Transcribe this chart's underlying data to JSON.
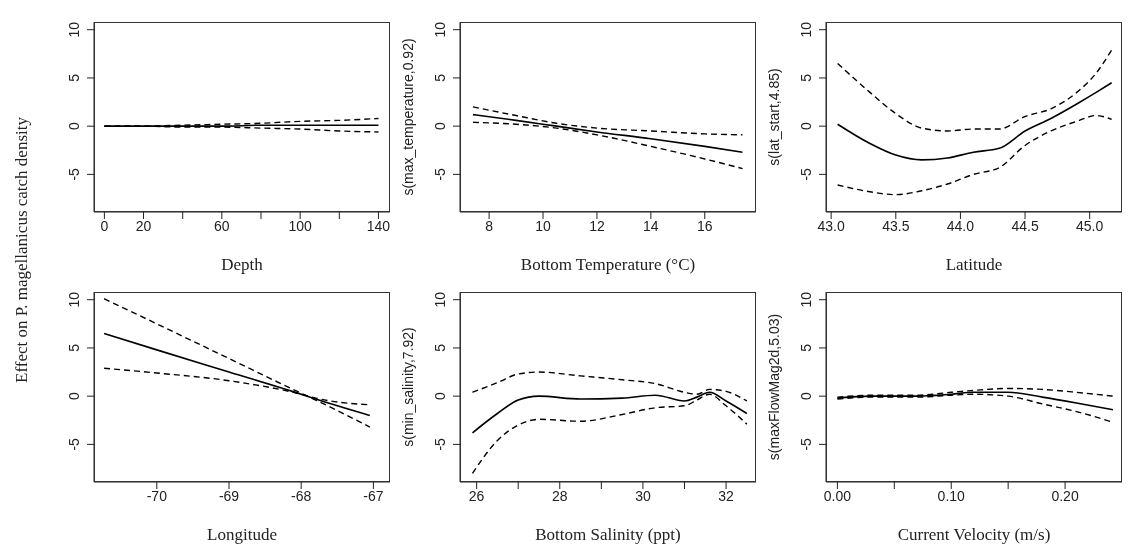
{
  "chart_data": [
    {
      "type": "line",
      "xlabel": "Depth",
      "ylabel": "Effect on P. magellanicus catch density",
      "xlim": [
        -5.3,
        145.9
      ],
      "ylim": [
        -8.9,
        10.8
      ],
      "xticks": [
        0,
        20,
        {
          "value": 40,
          "label": null
        },
        60,
        {
          "value": 80,
          "label": null
        },
        100,
        {
          "value": 120,
          "label": null
        },
        140
      ],
      "yticks": [
        -5,
        0,
        5,
        10
      ],
      "series": [
        {
          "color": "#000000",
          "line_style": "solid",
          "x": [
            0,
            20,
            40,
            60,
            80,
            100,
            120,
            140
          ],
          "values": [
            0,
            0,
            0,
            0,
            0.1,
            0.1,
            0.1,
            0.1
          ]
        },
        {
          "color": "#000000",
          "line_style": "dashed",
          "x": [
            0,
            20,
            40,
            60,
            80,
            100,
            120,
            140
          ],
          "values": [
            0,
            0,
            0.1,
            0.2,
            0.3,
            0.5,
            0.6,
            0.8
          ]
        },
        {
          "color": "#000000",
          "line_style": "dashed",
          "x": [
            0,
            20,
            40,
            60,
            80,
            100,
            120,
            140
          ],
          "values": [
            0,
            0,
            -0.1,
            -0.1,
            -0.2,
            -0.3,
            -0.5,
            -0.6
          ]
        }
      ]
    },
    {
      "type": "line",
      "xlabel": "Bottom Temperature (°C)",
      "ylabel": "s(max_temperature,0.92)",
      "xlim": [
        6.92,
        17.9
      ],
      "ylim": [
        -8.9,
        10.8
      ],
      "xticks": [
        8,
        10,
        12,
        14,
        16
      ],
      "yticks": [
        -5,
        0,
        5,
        10
      ],
      "series": [
        {
          "color": "#000000",
          "line_style": "solid",
          "x": [
            7.4,
            9,
            10.5,
            12,
            14,
            16,
            17.4
          ],
          "values": [
            1.2,
            0.6,
            0,
            -0.6,
            -1.3,
            -2.1,
            -2.7
          ]
        },
        {
          "color": "#000000",
          "line_style": "dashed",
          "x": [
            7.4,
            9,
            10.5,
            12,
            14,
            16,
            17.4
          ],
          "values": [
            2.0,
            1.1,
            0.3,
            -0.2,
            -0.5,
            -0.8,
            -0.9
          ]
        },
        {
          "color": "#000000",
          "line_style": "dashed",
          "x": [
            7.4,
            9,
            10.5,
            12,
            14,
            16,
            17.4
          ],
          "values": [
            0.4,
            0.2,
            -0.2,
            -0.9,
            -2.1,
            -3.4,
            -4.4
          ]
        }
      ]
    },
    {
      "type": "line",
      "xlabel": "Latitude",
      "ylabel": "s(lat_start,4.85)",
      "xlim": [
        42.96,
        45.25
      ],
      "ylim": [
        -8.9,
        10.8
      ],
      "xticks": [
        {
          "value": 43,
          "label": "43.0"
        },
        43.5,
        {
          "value": 44,
          "label": "44.0"
        },
        44.5,
        {
          "value": 45,
          "label": "45.0"
        }
      ],
      "yticks": [
        -5,
        0,
        5,
        10
      ],
      "series": [
        {
          "color": "#000000",
          "line_style": "solid",
          "x": [
            43.05,
            43.3,
            43.5,
            43.7,
            43.9,
            44.1,
            44.3,
            44.5,
            44.7,
            44.9,
            45.05,
            45.17
          ],
          "values": [
            0.2,
            -1.8,
            -3.0,
            -3.5,
            -3.3,
            -2.7,
            -2.3,
            -0.5,
            0.8,
            2.3,
            3.5,
            4.5
          ]
        },
        {
          "color": "#000000",
          "line_style": "dashed",
          "x": [
            43.05,
            43.3,
            43.5,
            43.7,
            43.9,
            44.1,
            44.3,
            44.5,
            44.7,
            44.9,
            45.05,
            45.17
          ],
          "values": [
            6.5,
            3.5,
            1.3,
            -0.2,
            -0.5,
            -0.3,
            -0.3,
            1.0,
            1.8,
            3.5,
            5.5,
            7.9
          ]
        },
        {
          "color": "#000000",
          "line_style": "dashed",
          "x": [
            43.05,
            43.3,
            43.5,
            43.7,
            43.9,
            44.1,
            44.3,
            44.5,
            44.7,
            44.9,
            45.05,
            45.17
          ],
          "values": [
            -6.1,
            -6.8,
            -7.1,
            -6.7,
            -6.0,
            -5.0,
            -4.3,
            -2.0,
            -0.5,
            0.5,
            1.1,
            0.7
          ]
        }
      ]
    },
    {
      "type": "line",
      "xlabel": "Longitude",
      "xlim": [
        -70.87,
        -66.77
      ],
      "ylim": [
        -8.9,
        10.8
      ],
      "xticks": [
        -70,
        -69,
        -68,
        -67
      ],
      "yticks": [
        -5,
        0,
        5,
        10
      ],
      "series": [
        {
          "color": "#000000",
          "line_style": "solid",
          "x": [
            -70.73,
            -70,
            -69,
            -68,
            -67.8,
            -67.05
          ],
          "values": [
            6.5,
            4.8,
            2.5,
            0.2,
            -0.3,
            -2.0
          ]
        },
        {
          "color": "#000000",
          "line_style": "dashed",
          "x": [
            -70.73,
            -70,
            -69,
            -68,
            -67.8,
            -67.05
          ],
          "values": [
            10.1,
            7.5,
            3.9,
            0.3,
            -0.4,
            -3.2
          ]
        },
        {
          "color": "#000000",
          "line_style": "dashed",
          "x": [
            -70.73,
            -70,
            -69,
            -68,
            -67.8,
            -67.05
          ],
          "values": [
            2.9,
            2.4,
            1.6,
            0.2,
            -0.2,
            -0.9
          ]
        }
      ]
    },
    {
      "type": "line",
      "xlabel": "Bottom Salinity (ppt)",
      "ylabel": "s(min_salinity,7.92)",
      "xlim": [
        25.6,
        32.72
      ],
      "ylim": [
        -8.9,
        10.8
      ],
      "xticks": [
        26,
        {
          "value": 27,
          "label": null
        },
        28,
        {
          "value": 29,
          "label": null
        },
        30,
        {
          "value": 31,
          "label": null
        },
        32
      ],
      "yticks": [
        -5,
        0,
        5,
        10
      ],
      "series": [
        {
          "color": "#000000",
          "line_style": "solid",
          "x": [
            25.9,
            26.5,
            27.0,
            27.5,
            28.5,
            29.5,
            30.3,
            31.0,
            31.3,
            31.6,
            32.0,
            32.5
          ],
          "values": [
            -3.8,
            -1.8,
            -0.4,
            0,
            -0.3,
            -0.2,
            0.1,
            -0.5,
            -0.1,
            0.4,
            -0.5,
            -1.8
          ]
        },
        {
          "color": "#000000",
          "line_style": "dashed",
          "x": [
            25.9,
            26.5,
            27.0,
            27.5,
            28.5,
            29.5,
            30.3,
            31.0,
            31.3,
            31.6,
            32.0,
            32.5
          ],
          "values": [
            0.4,
            1.4,
            2.3,
            2.5,
            2.1,
            1.7,
            1.3,
            0.4,
            0.2,
            0.7,
            0.5,
            -0.5
          ]
        },
        {
          "color": "#000000",
          "line_style": "dashed",
          "x": [
            25.9,
            26.5,
            27.0,
            27.5,
            28.5,
            29.5,
            30.3,
            31.0,
            31.3,
            31.6,
            32.0,
            32.5
          ],
          "values": [
            -8.0,
            -4.6,
            -3.0,
            -2.4,
            -2.6,
            -1.9,
            -1.2,
            -1.0,
            -0.4,
            0.2,
            -1.0,
            -2.9
          ]
        }
      ]
    },
    {
      "type": "line",
      "xlabel": "Current Velocity (m/s)",
      "ylabel": "s(maxFlowMag2d,5.03)",
      "xlim": [
        -0.01,
        0.25
      ],
      "ylim": [
        -8.9,
        10.8
      ],
      "xticks": [
        {
          "value": 0,
          "label": "0.00"
        },
        {
          "value": 0.05,
          "label": null
        },
        {
          "value": 0.1,
          "label": "0.10"
        },
        {
          "value": 0.15,
          "label": null
        },
        {
          "value": 0.2,
          "label": "0.20"
        }
      ],
      "yticks": [
        -5,
        0,
        5,
        10
      ],
      "series": [
        {
          "color": "#000000",
          "line_style": "solid",
          "x": [
            0,
            0.03,
            0.07,
            0.1,
            0.12,
            0.15,
            0.18,
            0.21,
            0.242
          ],
          "values": [
            -0.2,
            0,
            0,
            0.2,
            0.4,
            0.4,
            -0.1,
            -0.7,
            -1.4
          ]
        },
        {
          "color": "#000000",
          "line_style": "dashed",
          "x": [
            0,
            0.03,
            0.07,
            0.1,
            0.12,
            0.15,
            0.18,
            0.21,
            0.242
          ],
          "values": [
            -0.1,
            0.1,
            0.1,
            0.4,
            0.6,
            0.8,
            0.7,
            0.4,
            0.0
          ]
        },
        {
          "color": "#000000",
          "line_style": "dashed",
          "x": [
            0,
            0.03,
            0.07,
            0.1,
            0.12,
            0.15,
            0.18,
            0.21,
            0.242
          ],
          "values": [
            -0.3,
            -0.1,
            -0.1,
            0.1,
            0.2,
            0.0,
            -0.8,
            -1.6,
            -2.7
          ]
        }
      ]
    }
  ]
}
